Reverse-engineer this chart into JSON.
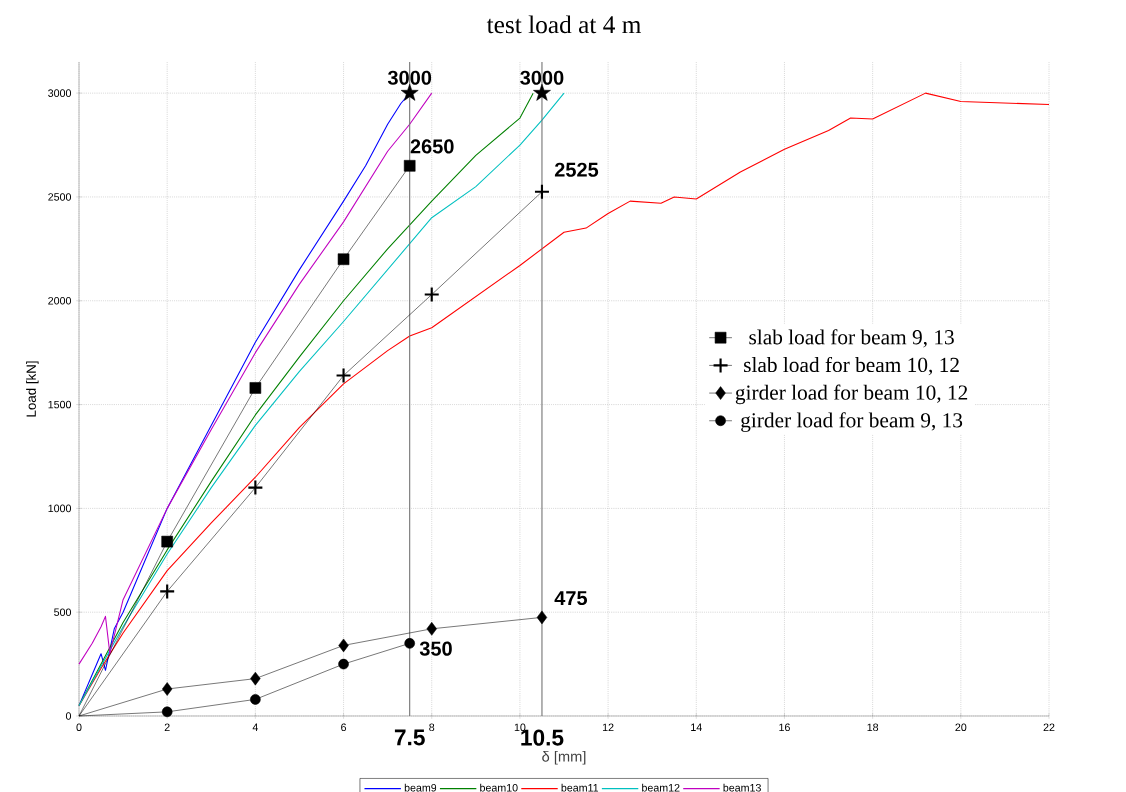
{
  "chart_data": {
    "type": "line",
    "title": "test load at 4 m",
    "xlabel": "δ [mm]",
    "ylabel": "Load [kN]",
    "xlim": [
      0,
      22
    ],
    "ylim": [
      0,
      3150
    ],
    "xticks": [
      0,
      2,
      4,
      6,
      8,
      10,
      12,
      14,
      16,
      18,
      20,
      22
    ],
    "yticks": [
      0,
      500,
      1000,
      1500,
      2000,
      2500,
      3000
    ],
    "grid": true,
    "legend": "bottom",
    "series": [
      {
        "name": "beam9",
        "color": "#0000ff",
        "marker": "none",
        "x": [
          0,
          0.3,
          0.5,
          0.6,
          0.8,
          1,
          1.5,
          2,
          3,
          4,
          5,
          6,
          6.5,
          7,
          7.3,
          7.5
        ],
        "values": [
          50,
          200,
          300,
          220,
          420,
          500,
          750,
          1000,
          1400,
          1800,
          2150,
          2480,
          2650,
          2850,
          2950,
          3000
        ]
      },
      {
        "name": "beam10",
        "color": "#008000",
        "marker": "none",
        "x": [
          0,
          1,
          2,
          3,
          4,
          5,
          6,
          7,
          8,
          9,
          10,
          10.3
        ],
        "values": [
          50,
          450,
          800,
          1130,
          1450,
          1730,
          2000,
          2250,
          2480,
          2700,
          2880,
          3000
        ]
      },
      {
        "name": "beam11",
        "color": "#ff0000",
        "marker": "none",
        "x": [
          0,
          0.5,
          1,
          2,
          3,
          4,
          5,
          6,
          7,
          7.5,
          8,
          9,
          10,
          11,
          11.5,
          12,
          12.5,
          13.2,
          13.5,
          14,
          15,
          16,
          17,
          17.5,
          18,
          19.2,
          20,
          22
        ],
        "values": [
          50,
          230,
          400,
          700,
          930,
          1150,
          1390,
          1600,
          1760,
          1830,
          1870,
          2020,
          2170,
          2330,
          2350,
          2420,
          2480,
          2470,
          2500,
          2490,
          2620,
          2730,
          2820,
          2880,
          2875,
          3000,
          2960,
          2945
        ]
      },
      {
        "name": "beam12",
        "color": "#00c0c0",
        "marker": "none",
        "x": [
          0,
          1,
          2,
          3,
          4,
          5,
          6,
          7,
          8,
          9,
          10,
          10.5,
          11
        ],
        "values": [
          50,
          430,
          780,
          1100,
          1400,
          1660,
          1900,
          2150,
          2400,
          2550,
          2750,
          2870,
          3000
        ]
      },
      {
        "name": "beam13",
        "color": "#c000c0",
        "marker": "none",
        "x": [
          0,
          0.3,
          0.5,
          0.6,
          0.7,
          1,
          2,
          3,
          4,
          5,
          6,
          7,
          7.5,
          8
        ],
        "values": [
          250,
          350,
          430,
          480,
          300,
          560,
          1000,
          1380,
          1750,
          2080,
          2380,
          2720,
          2850,
          3000
        ]
      },
      {
        "name": "slab load for beam 9, 13",
        "color": "#000000",
        "marker": "square",
        "x": [
          0,
          2,
          4,
          6,
          7.5
        ],
        "values": [
          0,
          840,
          1580,
          2200,
          2650
        ],
        "value_labels": [
          null,
          null,
          null,
          null,
          "2650"
        ]
      },
      {
        "name": "slab load for beam 10, 12",
        "color": "#000000",
        "marker": "cross",
        "x": [
          0,
          2,
          4,
          6,
          8,
          10.5
        ],
        "values": [
          0,
          600,
          1100,
          1640,
          2030,
          2525
        ],
        "value_labels": [
          null,
          null,
          null,
          null,
          null,
          "2525"
        ]
      },
      {
        "name": "girder load for  beam 10, 12",
        "color": "#000000",
        "marker": "diamond",
        "x": [
          0,
          2,
          4,
          6,
          8,
          10.5
        ],
        "values": [
          0,
          130,
          180,
          340,
          420,
          475
        ],
        "value_labels": [
          null,
          null,
          null,
          null,
          null,
          "475"
        ]
      },
      {
        "name": "girder load for  beam 9, 13",
        "color": "#000000",
        "marker": "circle",
        "x": [
          0,
          2,
          4,
          6,
          7.5
        ],
        "values": [
          0,
          20,
          80,
          250,
          350
        ],
        "value_labels": [
          null,
          null,
          null,
          null,
          "350"
        ]
      },
      {
        "type": "scatter",
        "color": "#000000",
        "marker": "star",
        "x": [
          7.5,
          10.5
        ],
        "values": [
          3000,
          3000
        ],
        "value_labels": [
          "3000",
          "3000"
        ]
      }
    ],
    "ref_lines": [
      {
        "axis": "x",
        "value": 7.5,
        "label": "7.5",
        "color": "#707070"
      },
      {
        "axis": "x",
        "value": 10.5,
        "label": "10.5",
        "color": "#707070"
      }
    ]
  }
}
